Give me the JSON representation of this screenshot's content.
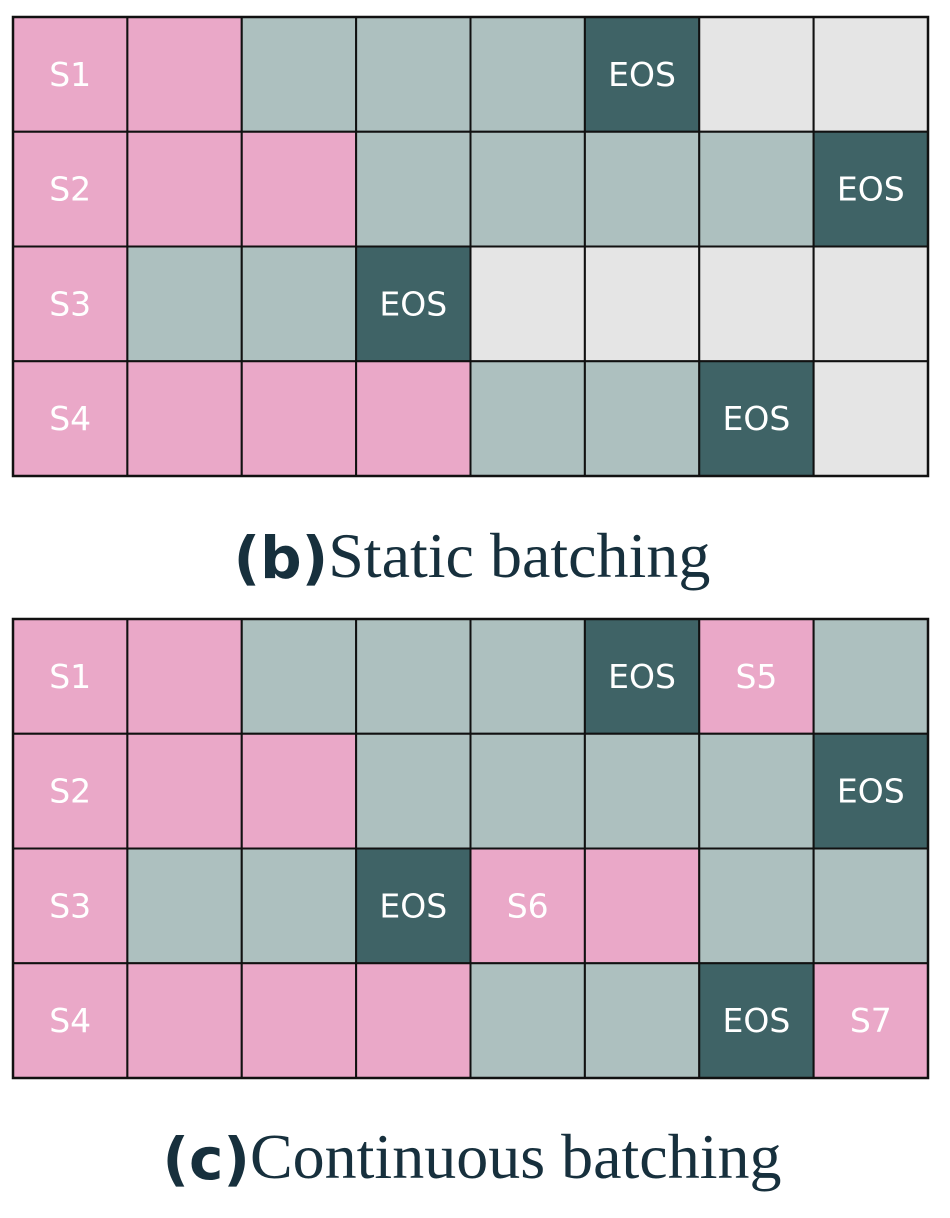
{
  "panels": [
    {
      "tag": "(b)",
      "caption": "Static batching",
      "rows": [
        [
          {
            "color": "#eaa8c8",
            "label": "S1"
          },
          {
            "color": "#eaa8c8"
          },
          {
            "color": "#adc0bf"
          },
          {
            "color": "#adc0bf"
          },
          {
            "color": "#adc0bf"
          },
          {
            "color": "#3f6366",
            "label": "EOS"
          },
          {
            "color": "#e5e5e5"
          },
          {
            "color": "#e5e5e5"
          }
        ],
        [
          {
            "color": "#eaa8c8",
            "label": "S2"
          },
          {
            "color": "#eaa8c8"
          },
          {
            "color": "#eaa8c8"
          },
          {
            "color": "#adc0bf"
          },
          {
            "color": "#adc0bf"
          },
          {
            "color": "#adc0bf"
          },
          {
            "color": "#adc0bf"
          },
          {
            "color": "#3f6366",
            "label": "EOS"
          }
        ],
        [
          {
            "color": "#eaa8c8",
            "label": "S3"
          },
          {
            "color": "#adc0bf"
          },
          {
            "color": "#adc0bf"
          },
          {
            "color": "#3f6366",
            "label": "EOS"
          },
          {
            "color": "#e5e5e5"
          },
          {
            "color": "#e5e5e5"
          },
          {
            "color": "#e5e5e5"
          },
          {
            "color": "#e5e5e5"
          }
        ],
        [
          {
            "color": "#eaa8c8",
            "label": "S4"
          },
          {
            "color": "#eaa8c8"
          },
          {
            "color": "#eaa8c8"
          },
          {
            "color": "#eaa8c8"
          },
          {
            "color": "#adc0bf"
          },
          {
            "color": "#adc0bf"
          },
          {
            "color": "#3f6366",
            "label": "EOS"
          },
          {
            "color": "#e5e5e5"
          }
        ]
      ]
    },
    {
      "tag": "(c)",
      "caption": "Continuous batching",
      "rows": [
        [
          {
            "color": "#eaa8c8",
            "label": "S1"
          },
          {
            "color": "#eaa8c8"
          },
          {
            "color": "#adc0bf"
          },
          {
            "color": "#adc0bf"
          },
          {
            "color": "#adc0bf"
          },
          {
            "color": "#3f6366",
            "label": "EOS"
          },
          {
            "color": "#eaa8c8",
            "label": "S5"
          },
          {
            "color": "#adc0bf"
          }
        ],
        [
          {
            "color": "#eaa8c8",
            "label": "S2"
          },
          {
            "color": "#eaa8c8"
          },
          {
            "color": "#eaa8c8"
          },
          {
            "color": "#adc0bf"
          },
          {
            "color": "#adc0bf"
          },
          {
            "color": "#adc0bf"
          },
          {
            "color": "#adc0bf"
          },
          {
            "color": "#3f6366",
            "label": "EOS"
          }
        ],
        [
          {
            "color": "#eaa8c8",
            "label": "S3"
          },
          {
            "color": "#adc0bf"
          },
          {
            "color": "#adc0bf"
          },
          {
            "color": "#3f6366",
            "label": "EOS"
          },
          {
            "color": "#eaa8c8",
            "label": "S6"
          },
          {
            "color": "#eaa8c8"
          },
          {
            "color": "#adc0bf"
          },
          {
            "color": "#adc0bf"
          }
        ],
        [
          {
            "color": "#eaa8c8",
            "label": "S4"
          },
          {
            "color": "#eaa8c8"
          },
          {
            "color": "#eaa8c8"
          },
          {
            "color": "#eaa8c8"
          },
          {
            "color": "#adc0bf"
          },
          {
            "color": "#adc0bf"
          },
          {
            "color": "#3f6366",
            "label": "EOS"
          },
          {
            "color": "#eaa8c8",
            "label": "S7"
          }
        ]
      ]
    }
  ]
}
